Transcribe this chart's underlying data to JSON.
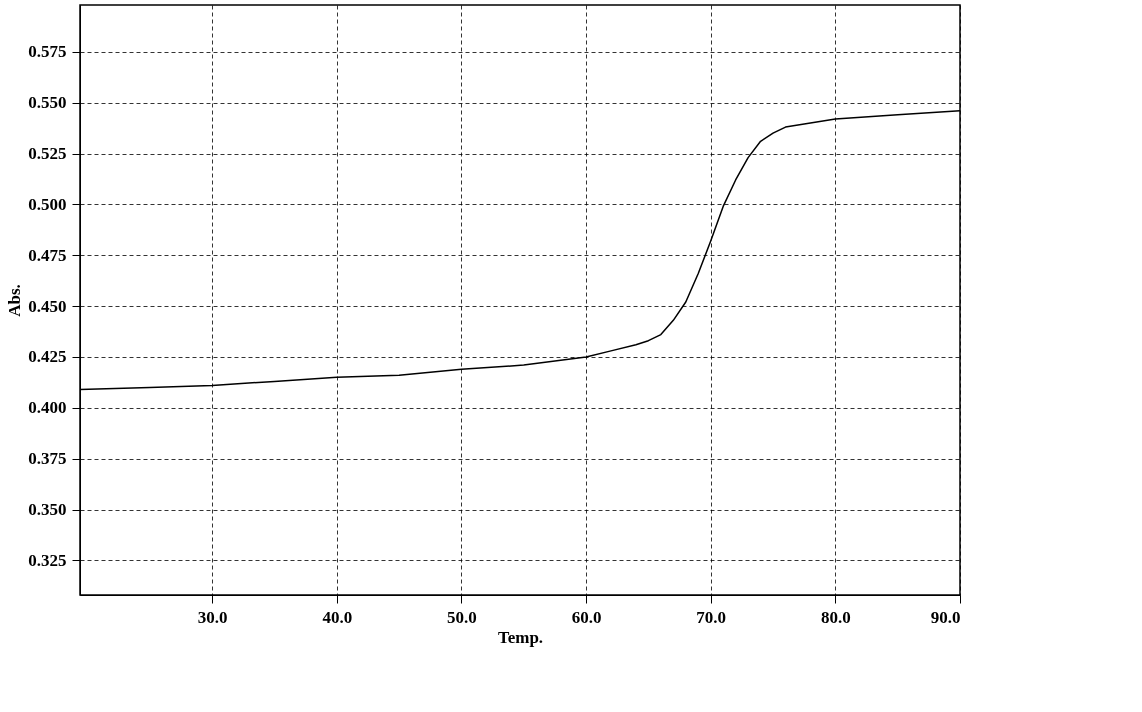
{
  "chart_data": {
    "type": "line",
    "xlabel": "Temp.",
    "ylabel": "Abs.",
    "x": [
      19.4,
      25,
      30,
      35,
      40,
      45,
      50,
      55,
      60,
      62,
      64,
      65,
      66,
      67,
      68,
      69,
      70,
      71,
      72,
      73,
      74,
      75,
      76,
      78,
      80,
      85,
      90
    ],
    "series": [
      {
        "color": "#000000",
        "values": [
          0.409,
          0.41,
          0.411,
          0.413,
          0.415,
          0.416,
          0.419,
          0.421,
          0.425,
          0.428,
          0.431,
          0.433,
          0.436,
          0.443,
          0.452,
          0.466,
          0.482,
          0.499,
          0.512,
          0.523,
          0.531,
          0.535,
          0.538,
          0.54,
          0.542,
          0.544,
          0.546
        ]
      }
    ],
    "xlim": [
      19.4,
      90
    ],
    "ylim": [
      0.308,
      0.598
    ],
    "xticks": [
      {
        "value": 30,
        "label": "30.0"
      },
      {
        "value": 40,
        "label": "40.0"
      },
      {
        "value": 50,
        "label": "50.0"
      },
      {
        "value": 60,
        "label": "60.0"
      },
      {
        "value": 70,
        "label": "70.0"
      },
      {
        "value": 80,
        "label": "80.0"
      },
      {
        "value": 90,
        "label": "90.0"
      }
    ],
    "yticks": [
      0.325,
      {
        "value": 0.35,
        "label": "0.350"
      },
      0.375,
      {
        "value": 0.4,
        "label": "0.400"
      },
      0.425,
      {
        "value": 0.45,
        "label": "0.450"
      },
      0.475,
      {
        "value": 0.5,
        "label": "0.500"
      },
      0.525,
      {
        "value": 0.55,
        "label": "0.550"
      },
      0.575
    ],
    "grid": true,
    "line_style": "solid",
    "marker": "none"
  }
}
